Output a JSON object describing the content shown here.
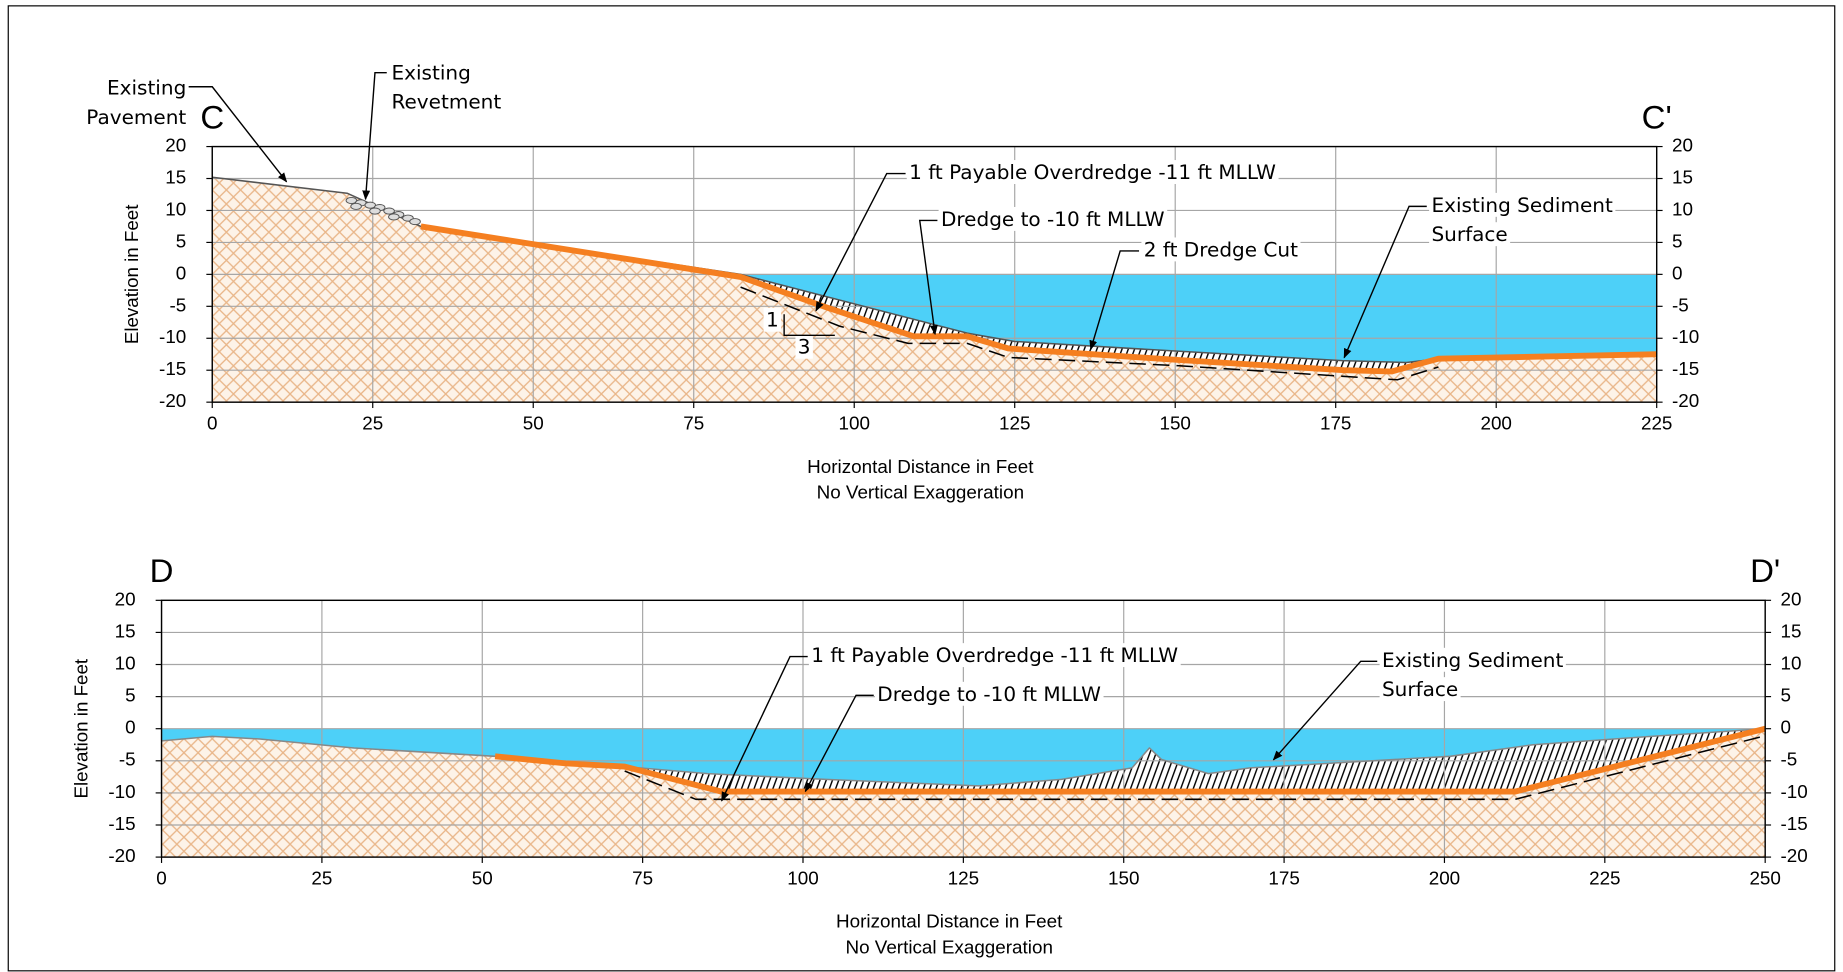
{
  "chart_data": [
    {
      "type": "line",
      "label_left": "C",
      "label_right": "C'",
      "y_label": "Elevation in Feet",
      "x_label": "Horizontal Distance in Feet",
      "note": "No Vertical Exaggeration",
      "xlim": [
        0,
        225
      ],
      "ylim": [
        -20,
        20
      ],
      "xticks": [
        0,
        25,
        50,
        75,
        100,
        125,
        150,
        175,
        200,
        225
      ],
      "yticks": [
        -20,
        -15,
        -10,
        -5,
        0,
        5,
        10,
        15,
        20
      ],
      "grid": true,
      "water_color": "#4dd0f8",
      "ground_color": "#e9b689",
      "hatch_color": "#000000",
      "series": [
        {
          "color": "#555555",
          "x": [
            0,
            21,
            32.5,
            82.3,
            117.6,
            125,
            150,
            176,
            186,
            191,
            225
          ],
          "values": [
            15.2,
            12.7,
            7.5,
            0,
            -9.2,
            -10.5,
            -12,
            -13.5,
            -13.8,
            -13.2,
            -12.5
          ]
        },
        {
          "color": "#f57f20",
          "x": [
            32.5,
            82.3,
            95.5,
            109.3,
            117.6,
            124,
            150.6,
            176.3,
            183.7,
            191,
            225
          ],
          "values": [
            7.5,
            -0.4,
            -5.1,
            -9.7,
            -9.7,
            -11.6,
            -13.4,
            -15,
            -15.2,
            -13.2,
            -12.5
          ]
        },
        {
          "color": "#000000",
          "dash": true,
          "x": [
            82.3,
            97.7,
            108.4,
            117.6,
            124,
            150.6,
            184.6,
            191
          ],
          "values": [
            -2,
            -8.1,
            -10.8,
            -10.8,
            -13,
            -14.3,
            -16.5,
            -14.5
          ]
        }
      ],
      "annotations": [
        {
          "text": [
            "Existing",
            "Pavement"
          ]
        },
        {
          "text": [
            "Existing",
            "Revetment"
          ]
        },
        {
          "text": [
            "1 ft Payable Overdredge -11 ft MLLW"
          ]
        },
        {
          "text": [
            "Dredge to -10 ft MLLW"
          ]
        },
        {
          "text": [
            "2 ft Dredge Cut"
          ]
        },
        {
          "text": [
            "Existing Sediment",
            "Surface"
          ]
        },
        {
          "text": [
            "1"
          ]
        },
        {
          "text": [
            "3"
          ]
        }
      ]
    },
    {
      "type": "line",
      "label_left": "D",
      "label_right": "D'",
      "y_label": "Elevation in Feet",
      "x_label": "Horizontal Distance in Feet",
      "note": "No Vertical Exaggeration",
      "xlim": [
        0,
        250
      ],
      "ylim": [
        -20,
        20
      ],
      "xticks": [
        0,
        25,
        50,
        75,
        100,
        125,
        150,
        175,
        200,
        225,
        250
      ],
      "yticks": [
        -20,
        -15,
        -10,
        -5,
        0,
        5,
        10,
        15,
        20
      ],
      "grid": true,
      "water_color": "#4dd0f8",
      "ground_color": "#e9b689",
      "hatch_color": "#000000",
      "series": [
        {
          "color": "#888888",
          "x": [
            0,
            7.9,
            15.3,
            30,
            52,
            63,
            72.2,
            85.1,
            103.5,
            127.4,
            140.3,
            151.3,
            154,
            155.9,
            163.2,
            169.7,
            200.9,
            213.8,
            232.2,
            250
          ],
          "values": [
            -1.9,
            -1.2,
            -1.6,
            -3,
            -4.3,
            -5.4,
            -5.9,
            -7,
            -7.9,
            -8.9,
            -7.9,
            -6.1,
            -3,
            -4.8,
            -7,
            -6.1,
            -4.3,
            -2.5,
            -1.2,
            0
          ]
        },
        {
          "color": "#f57f20",
          "x": [
            52,
            63,
            72.2,
            87.3,
            211,
            250
          ],
          "values": [
            -4.3,
            -5.4,
            -5.9,
            -9.8,
            -9.8,
            0
          ]
        },
        {
          "color": "#000000",
          "dash": true,
          "x": [
            72.2,
            83.3,
            211,
            250
          ],
          "values": [
            -6.6,
            -11,
            -11,
            -1.1
          ]
        }
      ],
      "annotations": [
        {
          "text": [
            "1 ft Payable Overdredge -11 ft MLLW"
          ]
        },
        {
          "text": [
            "Dredge to -10 ft MLLW"
          ]
        },
        {
          "text": [
            "Existing Sediment",
            "Surface"
          ]
        }
      ]
    }
  ]
}
